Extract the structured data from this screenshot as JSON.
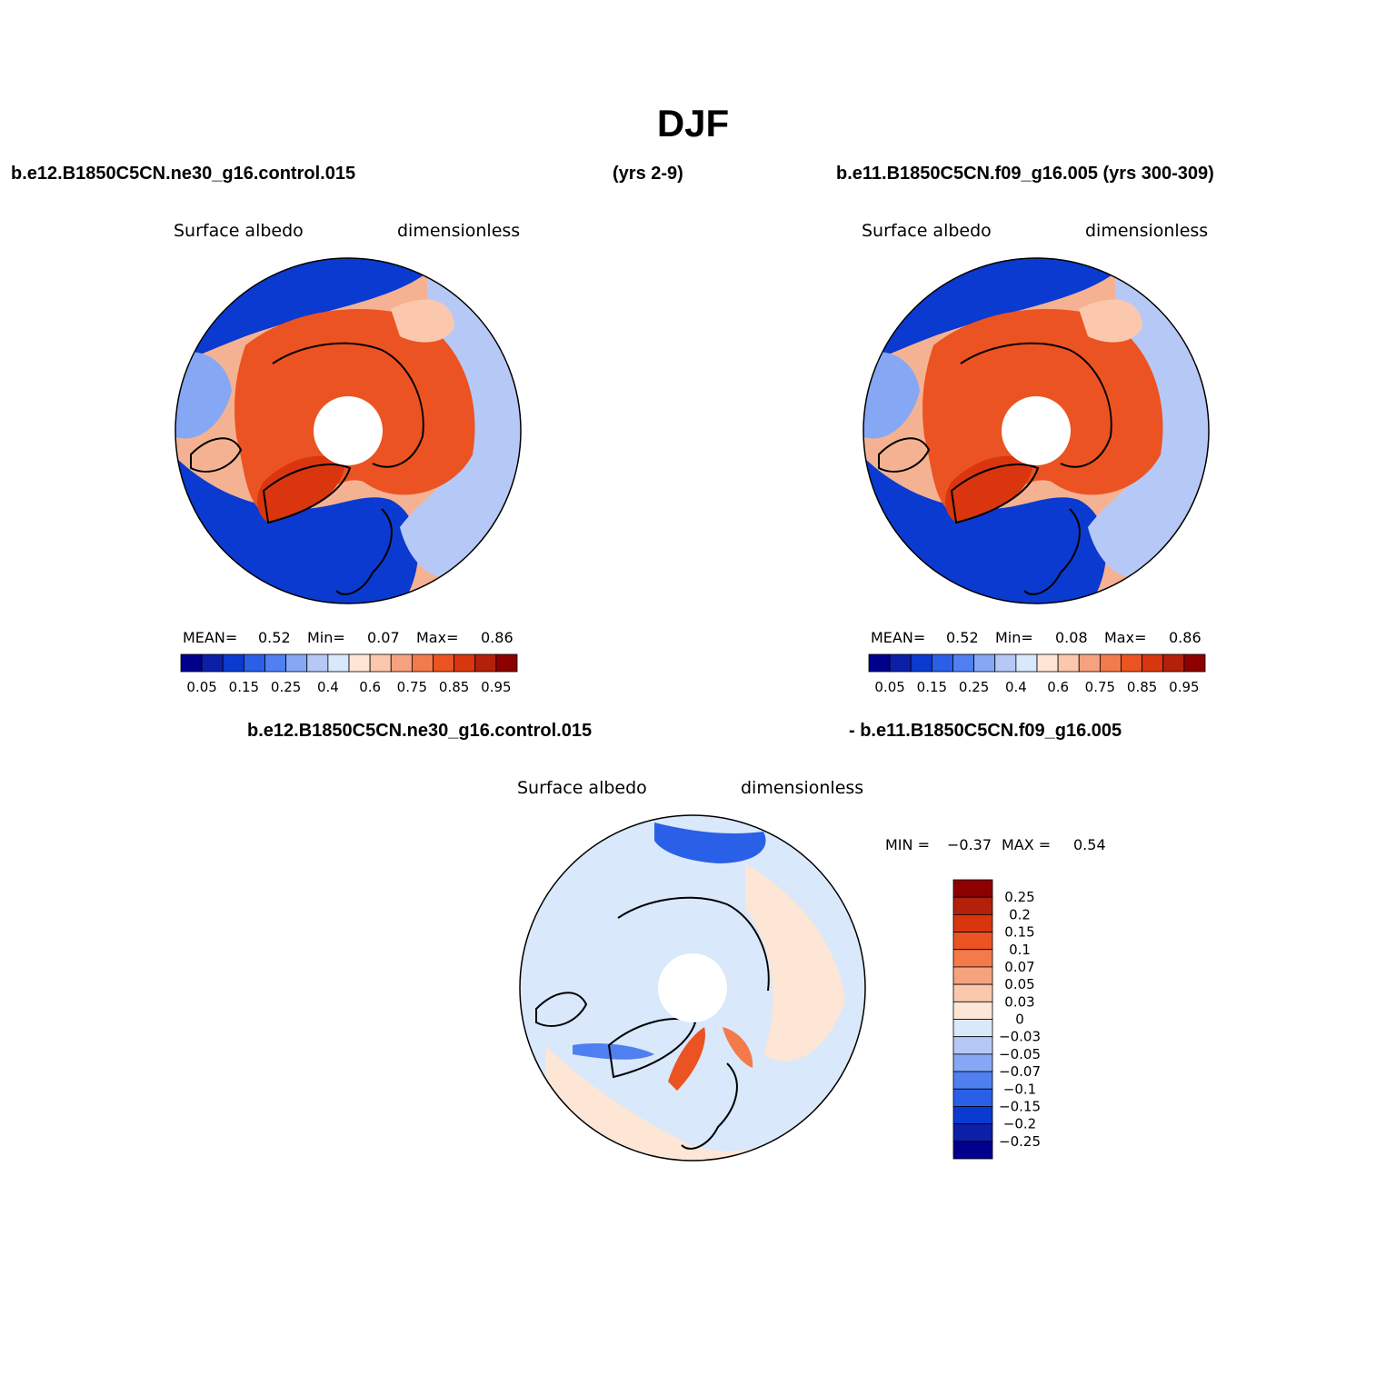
{
  "figure": {
    "title": "DJF",
    "header_left_case": "b.e12.B1850C5CN.ne30_g16.control.015",
    "header_left_years": "(yrs 2-9)",
    "header_right": "b.e11.B1850C5CN.f09_g16.005 (yrs 300-309)",
    "diff_header_left": "b.e12.B1850C5CN.ne30_g16.control.015",
    "diff_header_right": "- b.e11.B1850C5CN.f09_g16.005"
  },
  "panels": [
    {
      "id": "left",
      "variable": "Surface albedo",
      "units": "dimensionless",
      "mean_label": "MEAN=",
      "mean": "0.52",
      "min_label": "Min=",
      "min": "0.07",
      "max_label": "Max=",
      "max": "0.86"
    },
    {
      "id": "right",
      "variable": "Surface albedo",
      "units": "dimensionless",
      "mean_label": "MEAN=",
      "mean": "0.52",
      "min_label": "Min=",
      "min": "0.08",
      "max_label": "Max=",
      "max": "0.86"
    },
    {
      "id": "diff",
      "variable": "Surface albedo",
      "units": "dimensionless",
      "min_label": "MIN =",
      "min": "−0.37",
      "max_label": "MAX =",
      "max": "0.54"
    }
  ],
  "chart_data": [
    {
      "type": "heatmap",
      "projection": "north polar stereographic",
      "title": "Surface albedo",
      "units": "dimensionless",
      "source": "b.e12.B1850C5CN.ne30_g16.control.015 (yrs 2-9)",
      "stats": {
        "mean": 0.52,
        "min": 0.07,
        "max": 0.86
      },
      "colorbar": {
        "orientation": "horizontal",
        "colors": [
          "#00008c",
          "#0b1fa8",
          "#0b3ad0",
          "#2a5fe8",
          "#4f7ff0",
          "#86a8f4",
          "#b6c9f6",
          "#d9e8fa",
          "#fde6d6",
          "#fbc8ad",
          "#f7a27f",
          "#f37a4a",
          "#ec5322",
          "#d9360f",
          "#b4200a",
          "#8c0000"
        ],
        "tick_labels": [
          "0.05",
          "0.15",
          "0.25",
          "0.4",
          "0.6",
          "0.75",
          "0.85",
          "0.95"
        ]
      }
    },
    {
      "type": "heatmap",
      "projection": "north polar stereographic",
      "title": "Surface albedo",
      "units": "dimensionless",
      "source": "b.e11.B1850C5CN.f09_g16.005 (yrs 300-309)",
      "stats": {
        "mean": 0.52,
        "min": 0.08,
        "max": 0.86
      },
      "colorbar": {
        "orientation": "horizontal",
        "colors": [
          "#00008c",
          "#0b1fa8",
          "#0b3ad0",
          "#2a5fe8",
          "#4f7ff0",
          "#86a8f4",
          "#b6c9f6",
          "#d9e8fa",
          "#fde6d6",
          "#fbc8ad",
          "#f7a27f",
          "#f37a4a",
          "#ec5322",
          "#d9360f",
          "#b4200a",
          "#8c0000"
        ],
        "tick_labels": [
          "0.05",
          "0.15",
          "0.25",
          "0.4",
          "0.6",
          "0.75",
          "0.85",
          "0.95"
        ]
      }
    },
    {
      "type": "heatmap",
      "projection": "north polar stereographic",
      "title": "Surface albedo",
      "units": "dimensionless",
      "source": "difference",
      "stats": {
        "min": -0.37,
        "max": 0.54
      },
      "colorbar": {
        "orientation": "vertical",
        "colors": [
          "#8c0000",
          "#b4200a",
          "#d9360f",
          "#ec5322",
          "#f37a4a",
          "#f7a27f",
          "#fbc8ad",
          "#fde6d6",
          "#d9e8fa",
          "#b6c9f6",
          "#86a8f4",
          "#4f7ff0",
          "#2a5fe8",
          "#0b3ad0",
          "#0b1fa8",
          "#00008c"
        ],
        "tick_labels": [
          "0.25",
          "0.2",
          "0.15",
          "0.1",
          "0.07",
          "0.05",
          "0.03",
          "0",
          "−0.03",
          "−0.05",
          "−0.07",
          "−0.1",
          "−0.15",
          "−0.2",
          "−0.25"
        ]
      }
    }
  ]
}
